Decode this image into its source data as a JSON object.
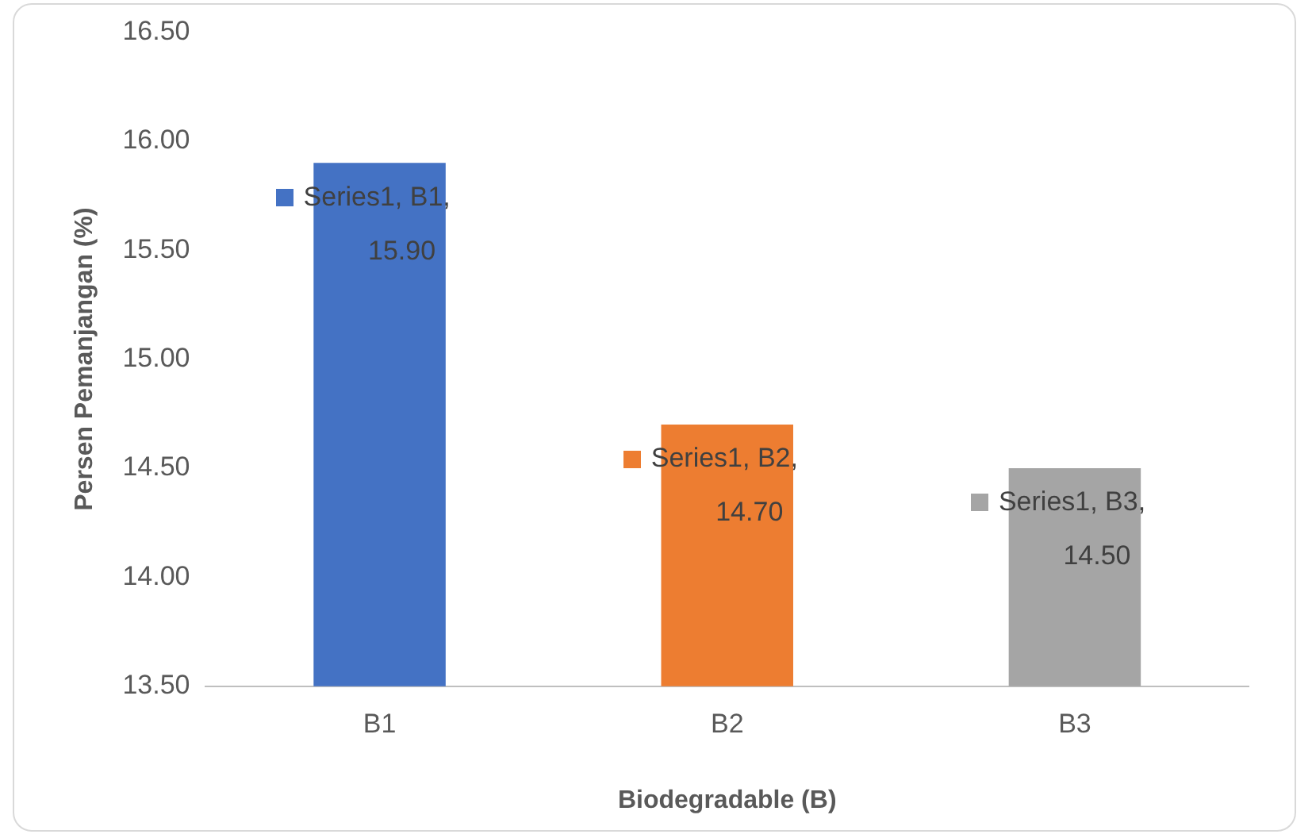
{
  "chart_data": {
    "type": "bar",
    "xlabel": "Biodegradable (B)",
    "ylabel": "Persen Pemanjangan (%)",
    "categories": [
      "B1",
      "B2",
      "B3"
    ],
    "series": [
      {
        "values": [
          15.9,
          14.7,
          14.5
        ],
        "colors": [
          "#4472c4",
          "#ed7d31",
          "#a5a5a5"
        ],
        "value_labels": [
          "Series1, B1, 15.90",
          "Series1, B2, 14.70",
          "Series1, B3, 14.50"
        ]
      }
    ],
    "ylim": [
      13.5,
      16.5
    ],
    "yticks": [
      {
        "value": 13.5,
        "label": "13.50"
      },
      {
        "value": 14,
        "label": "14.00"
      },
      {
        "value": 14.5,
        "label": "14.50"
      },
      {
        "value": 15,
        "label": "15.00"
      },
      {
        "value": 15.5,
        "label": "15.50"
      },
      {
        "value": 16,
        "label": "16.00"
      },
      {
        "value": 16.5,
        "label": "16.50"
      }
    ],
    "grid": false,
    "legend": false
  }
}
